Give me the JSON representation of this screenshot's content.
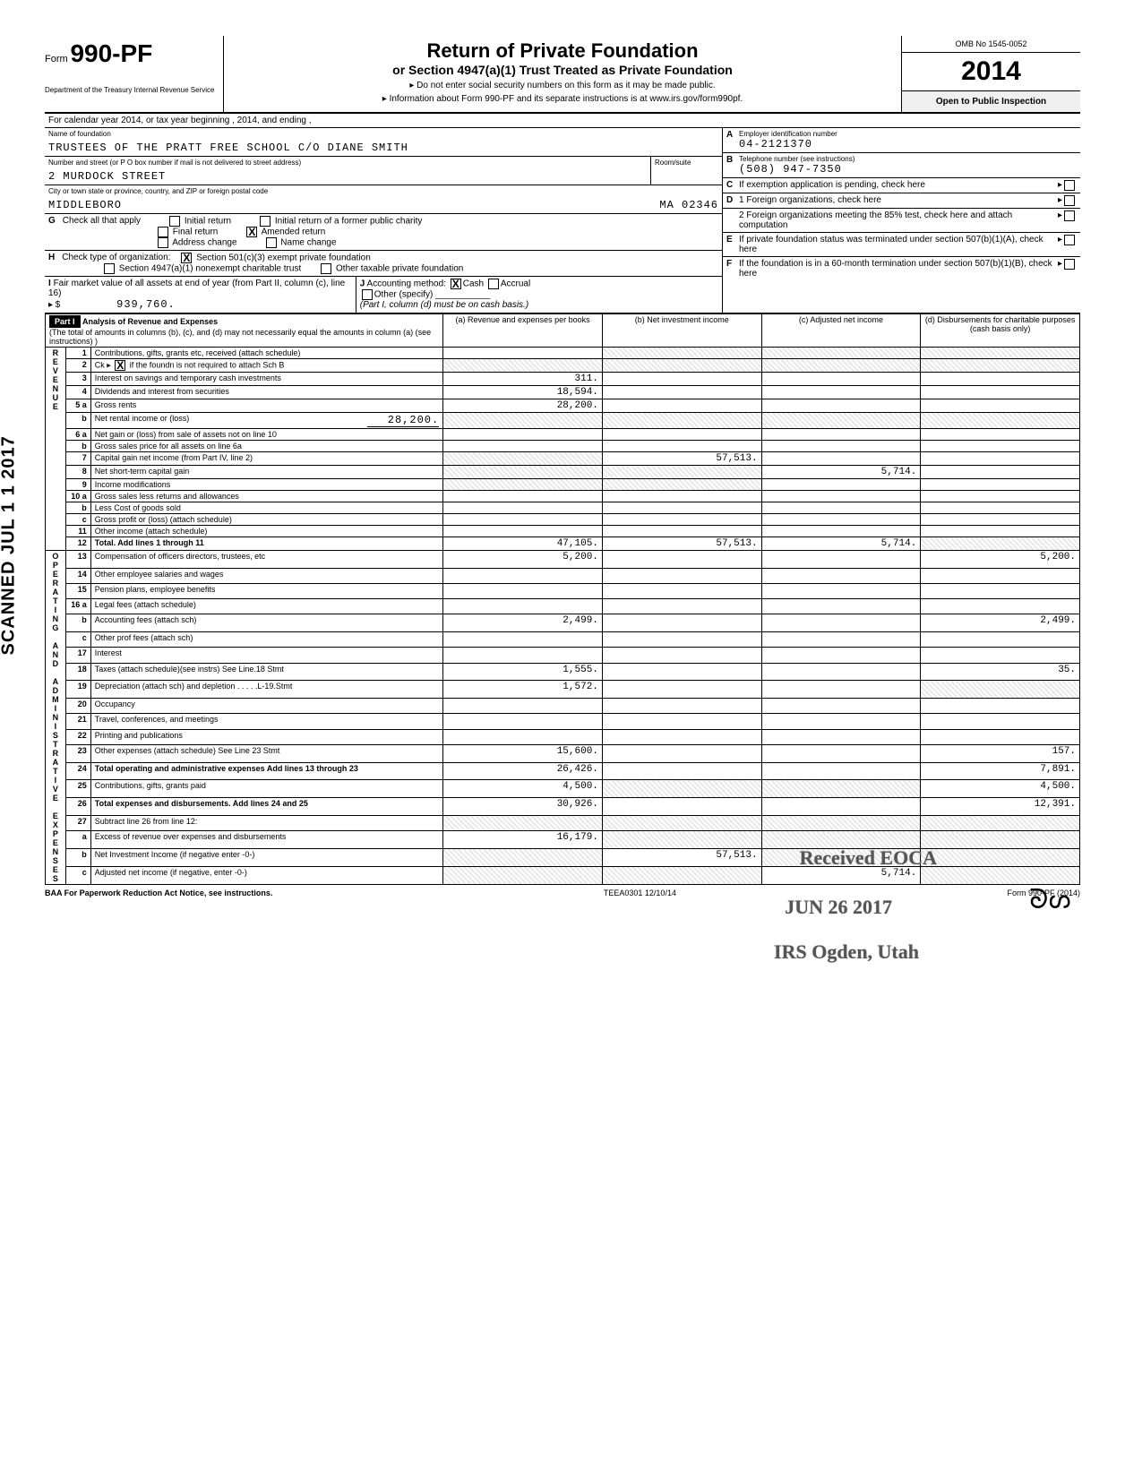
{
  "form": {
    "prefix": "Form",
    "number": "990-PF",
    "dept": "Department of the Treasury\nInternal Revenue Service",
    "title1": "Return of Private Foundation",
    "title2": "or Section 4947(a)(1) Trust Treated as Private Foundation",
    "note1": "▸ Do not enter social security numbers on this form as it may be made public.",
    "note2": "▸ Information about Form 990-PF and its separate instructions is at www.irs.gov/form990pf.",
    "omb": "OMB No 1545-0052",
    "year": "2014",
    "inspect": "Open to Public Inspection"
  },
  "calendar": "For calendar year 2014, or tax year beginning                              , 2014, and ending                              ,",
  "name_label": "Name of foundation",
  "name": "TRUSTEES OF THE PRATT FREE SCHOOL C/O DIANE SMITH",
  "ein_label": "Employer identification number",
  "ein": "04-2121370",
  "street_label": "Number and street (or P O box number if mail is not delivered to street address)",
  "street": "2 MURDOCK STREET",
  "room_label": "Room/suite",
  "phone_label": "Telephone number (see instructions)",
  "phone": "(508) 947-7350",
  "city_label": "City or town  state or province, country, and ZIP or foreign postal code",
  "city": "MIDDLEBORO",
  "state_zip": "MA  02346",
  "boxC": "If exemption application is pending, check here",
  "boxD1": "1 Foreign organizations, check here",
  "boxD2": "2 Foreign organizations meeting the 85% test, check here and attach computation",
  "boxE": "If private foundation status was terminated under section 507(b)(1)(A), check here",
  "boxF": "If the foundation is in a 60-month termination under section 507(b)(1)(B), check here",
  "G": {
    "label": "Check all that apply",
    "items": [
      "Initial return",
      "Final return",
      "Address change",
      "Initial return of a former public charity",
      "Amended return",
      "Name change"
    ]
  },
  "H": {
    "label": "Check type of organization:",
    "items": [
      "Section 501(c)(3) exempt private foundation",
      "Section 4947(a)(1) nonexempt charitable trust",
      "Other taxable private foundation"
    ]
  },
  "I": {
    "label": "Fair market value of all assets at end of year (from Part II, column (c), line 16)",
    "value": "939,760."
  },
  "J": {
    "label": "Accounting method:",
    "cash": "Cash",
    "accrual": "Accrual",
    "other": "Other (specify)",
    "note": "(Part I, column (d) must be on cash basis.)"
  },
  "part1": {
    "label": "Part I",
    "title": "Analysis of Revenue and Expenses",
    "sub": "(The total of amounts in columns (b), (c), and (d) may not necessarily equal the amounts in column (a) (see instructions) )",
    "cols": [
      "(a) Revenue and expenses per books",
      "(b) Net investment income",
      "(c) Adjusted net income",
      "(d) Disbursements for charitable purposes (cash basis only)"
    ]
  },
  "revenue_label": "REVENUE",
  "admin_label": "ADMINISTRATIVE",
  "operating_label": "OPERATING AND",
  "expenses_label": "EXPENSES",
  "lines": {
    "1": {
      "desc": "Contributions, gifts, grants  etc, received (attach schedule)"
    },
    "2": {
      "desc": "Ck ▸       if the foundn is not required to attach Sch B"
    },
    "3": {
      "desc": "Interest on savings and temporary cash investments",
      "a": "311."
    },
    "4": {
      "desc": "Dividends and interest from securities",
      "a": "18,594."
    },
    "5a": {
      "desc": "Gross rents",
      "a": "28,200."
    },
    "5b": {
      "desc": "Net rental income or (loss)",
      "inline": "28,200."
    },
    "6a": {
      "desc": "Net gain or (loss) from sale of assets not on line 10"
    },
    "6b": {
      "desc": "Gross sales price for all assets on line 6a"
    },
    "7": {
      "desc": "Capital gain net income (from Part IV, line 2)",
      "b": "57,513."
    },
    "8": {
      "desc": "Net short-term capital gain",
      "c": "5,714."
    },
    "9": {
      "desc": "Income modifications"
    },
    "10a": {
      "desc": "Gross sales less returns and allowances"
    },
    "10b": {
      "desc": "Less  Cost of goods sold"
    },
    "10c": {
      "desc": "Gross profit or (loss) (attach schedule)"
    },
    "11": {
      "desc": "Other income (attach schedule)"
    },
    "12": {
      "desc": "Total.  Add lines 1 through 11",
      "a": "47,105.",
      "b": "57,513.",
      "c": "5,714."
    },
    "13": {
      "desc": "Compensation of officers  directors, trustees, etc",
      "a": "5,200.",
      "d": "5,200."
    },
    "14": {
      "desc": "Other employee salaries and wages"
    },
    "15": {
      "desc": "Pension plans, employee benefits"
    },
    "16a": {
      "desc": "Legal fees (attach schedule)"
    },
    "16b": {
      "desc": "Accounting fees (attach sch)",
      "a": "2,499.",
      "d": "2,499."
    },
    "16c": {
      "desc": "Other prof  fees (attach sch)"
    },
    "17": {
      "desc": "Interest"
    },
    "18": {
      "desc": "Taxes (attach schedule)(see instrs)  See Line.18 Stmt",
      "a": "1,555.",
      "d": "35."
    },
    "19": {
      "desc": "Depreciation (attach sch) and depletion  . . . . .L-19.Stmt",
      "a": "1,572."
    },
    "20": {
      "desc": "Occupancy"
    },
    "21": {
      "desc": "Travel, conferences, and meetings"
    },
    "22": {
      "desc": "Printing and publications"
    },
    "23": {
      "desc": "Other expenses (attach schedule)   See Line 23 Stmt",
      "a": "15,600.",
      "d": "157."
    },
    "24": {
      "desc": "Total operating and administrative expenses  Add lines 13 through 23",
      "a": "26,426.",
      "d": "7,891."
    },
    "25": {
      "desc": "Contributions, gifts, grants paid",
      "a": "4,500.",
      "d": "4,500."
    },
    "26": {
      "desc": "Total expenses and disbursements. Add lines 24 and 25",
      "a": "30,926.",
      "d": "12,391."
    },
    "27": {
      "desc": "Subtract line 26 from line 12:"
    },
    "27a": {
      "desc": "Excess of revenue over expenses and disbursements",
      "a": "16,179."
    },
    "27b": {
      "desc": "Net Investment Income (if negative  enter -0-)",
      "b": "57,513."
    },
    "27c": {
      "desc": "Adjusted net income (if negative, enter -0-)",
      "c": "5,714."
    }
  },
  "stamps": {
    "scan": "SCANNED JUL 1 1 2017",
    "received": "Received EOCA",
    "date": "JUN 26 2017",
    "irs": "IRS Ogden, Utah"
  },
  "footer": {
    "left": "BAA  For Paperwork Reduction Act Notice, see instructions.",
    "center": "TEEA0301  12/10/14",
    "right": "Form 990-PF (2014)"
  },
  "sig": "ᘐᔕ"
}
